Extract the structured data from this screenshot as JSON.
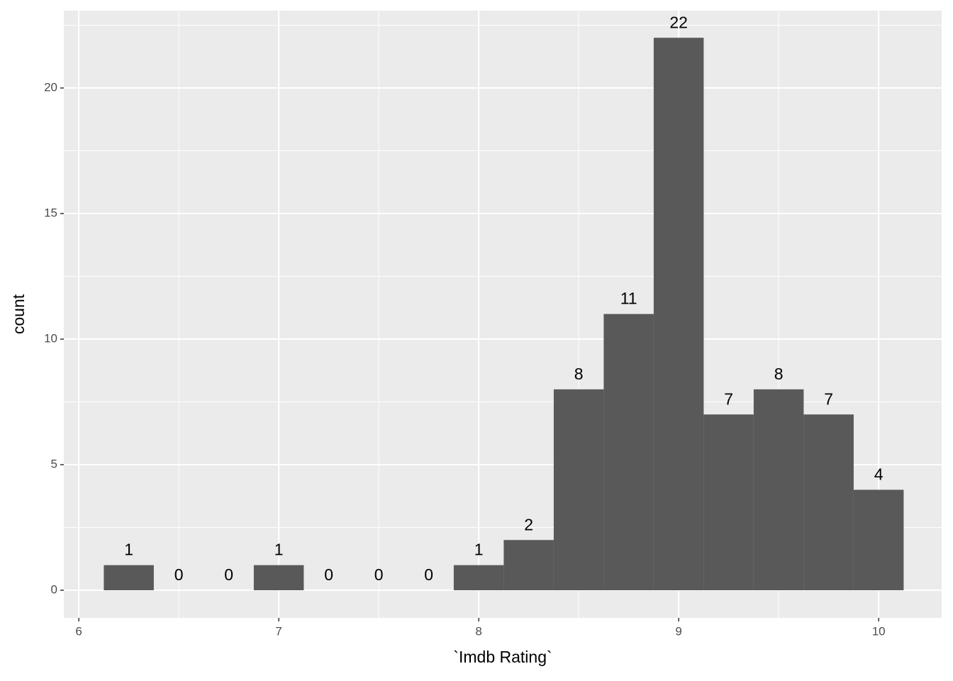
{
  "chart_data": {
    "type": "histogram",
    "x_label": "`Imdb Rating`",
    "y_label": "count",
    "bins": [
      6.125,
      6.375,
      6.625,
      6.875,
      7.125,
      7.375,
      7.625,
      7.875,
      8.125,
      8.375,
      8.625,
      8.875,
      9.125,
      9.375,
      9.625,
      9.875,
      10.125
    ],
    "values": [
      1,
      0,
      0,
      1,
      0,
      0,
      0,
      1,
      2,
      8,
      11,
      22,
      7,
      8,
      7,
      4
    ],
    "color": "#595959",
    "xlim": [
      5.925,
      10.315
    ],
    "ylim": [
      -1.1,
      23.08
    ],
    "xticks": [
      6,
      7,
      8,
      9,
      10
    ],
    "yticks": [
      0,
      5,
      10,
      15,
      20
    ],
    "xminor_ticks": [
      6.5,
      7.5,
      8.5,
      9.5
    ],
    "yminor_ticks": [
      2.5,
      7.5,
      12.5,
      17.5,
      22.5
    ],
    "grid": true
  }
}
